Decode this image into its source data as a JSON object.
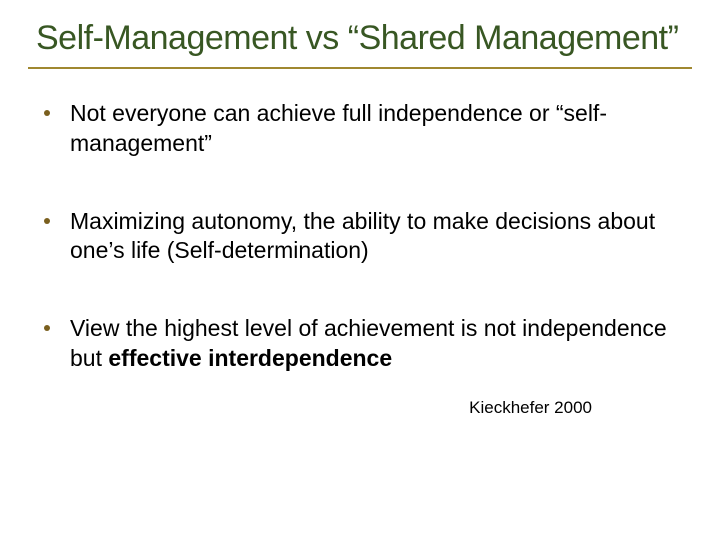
{
  "colors": {
    "title_text": "#385723",
    "title_border": "#a08830",
    "bullet_dot": "#7a5f1e",
    "body_text": "#000000",
    "background": "#ffffff"
  },
  "typography": {
    "title_fontsize": 34,
    "body_fontsize": 23,
    "citation_fontsize": 17,
    "font_family": "Arial"
  },
  "title": "Self-Management vs “Shared Management”",
  "bullets": [
    {
      "text": "Not everyone can achieve full independence or “self-management”"
    },
    {
      "text": "Maximizing autonomy, the ability to make decisions about one’s life (Self-determination)"
    },
    {
      "text_pre": "View the highest level of achievement is not independence but ",
      "text_bold": "effective interdependence"
    }
  ],
  "citation": "Kieckhefer 2000"
}
